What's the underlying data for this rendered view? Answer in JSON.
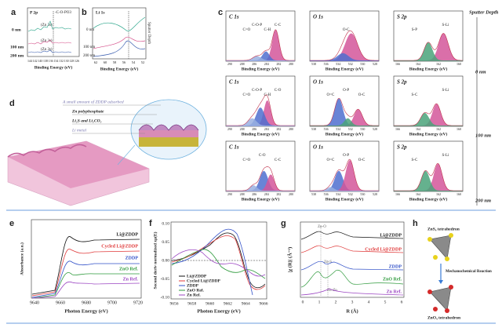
{
  "panel_a": {
    "label": "a",
    "title": "P 2p",
    "annotation": "-C-O-PO3",
    "series_labels": [
      "(Zn 3s)",
      "(Zn 3s)",
      "(Zn 3s)"
    ],
    "depths": [
      "0 nm",
      "100 nm",
      "200 nm"
    ],
    "xticks": [
      "144",
      "142",
      "140",
      "138",
      "136",
      "134",
      "132",
      "130",
      "128",
      "126"
    ],
    "xlabel": "Binding Energy (eV)"
  },
  "panel_b": {
    "label": "b",
    "title": "Li 1s",
    "side_label": "Sputter Depth",
    "depths": [
      "0 nm",
      "100 nm",
      "200 nm"
    ],
    "xticks": [
      "62",
      "60",
      "58",
      "56",
      "54",
      "52"
    ],
    "xlabel": "Binding Energy (eV)"
  },
  "panel_c": {
    "label": "c",
    "side_label": "Sputter Depth",
    "xlabel": "Binding Energy (eV)",
    "xticks": [
      [
        "290",
        "288",
        "286",
        "284",
        "282",
        "280"
      ],
      [
        "538",
        "536",
        "534",
        "532",
        "530",
        "528"
      ],
      [
        "166",
        "164",
        "162",
        "160"
      ]
    ],
    "rows": [
      {
        "depth": "0 nm",
        "cells": [
          {
            "title": "C 1s",
            "annotations": [
              "C=O",
              "C-O-P",
              "C-H",
              "C-C"
            ]
          },
          {
            "title": "O 1s",
            "annotations": [
              "O-C"
            ]
          },
          {
            "title": "S 2p",
            "annotations": [
              "S-P",
              "S-Li"
            ]
          }
        ]
      },
      {
        "depth": "100 nm",
        "cells": [
          {
            "title": "C 1s",
            "annotations": [
              "C=O",
              "C-O-P",
              "C-H",
              "C-O"
            ]
          },
          {
            "title": "O 1s",
            "annotations": [
              "O=C",
              "O-P",
              "O-C"
            ]
          },
          {
            "title": "S 2p",
            "annotations": [
              "S-C",
              "S-Li"
            ]
          }
        ]
      },
      {
        "depth": "200 nm",
        "cells": [
          {
            "title": "C 1s",
            "annotations": [
              "C=O",
              "C-O",
              "C-C"
            ]
          },
          {
            "title": "O 1s",
            "annotations": [
              "O=C",
              "O-P",
              "O-C"
            ]
          },
          {
            "title": "S 2p",
            "annotations": [
              "S-C",
              "S-Li"
            ]
          }
        ]
      }
    ]
  },
  "panel_d": {
    "label": "d",
    "layers": [
      "A small amount of ZDDP adsorbed",
      "Zn polyphosphate",
      "Li₂S and Li₂CO₃",
      "Li metal"
    ]
  },
  "panel_e": {
    "label": "e",
    "ylabel": "Absorbance (a.u.)",
    "xlabel": "Photon Energy (eV)",
    "xticks": [
      "9640",
      "9660",
      "9680",
      "9700",
      "9720"
    ],
    "legend": [
      "Li@ZDDP",
      "Cycled Li@ZDDP",
      "ZDDP",
      "ZnO Ref.",
      "Zn Ref."
    ]
  },
  "panel_f": {
    "label": "f",
    "ylabel": "Second deriv normalized xμ(E)",
    "xlabel": "Photon Energy (eV)",
    "yticks": [
      "0.10",
      "0.05",
      "0.00",
      "-0.05",
      "-0.10"
    ],
    "xticks": [
      "9656",
      "9658",
      "9660",
      "9662",
      "9664",
      "9666"
    ],
    "legend": [
      "Li@ZDDP",
      "Cycled Li@ZDDP",
      "ZDDP",
      "ZnO Ref.",
      "Zn Ref."
    ]
  },
  "panel_g": {
    "label": "g",
    "ylabel": "|χ (R)| (Å⁻³)",
    "xlabel": "R (Å)",
    "xticks": [
      "0",
      "1",
      "2",
      "3",
      "4",
      "5",
      "6"
    ],
    "annotations": [
      "Zn-O",
      "Zn-S",
      "Zn-Zn"
    ],
    "legend": [
      "Li@ZDDP",
      "Cycled Li@ZDDP",
      "ZDDP",
      "ZnO Ref.",
      "Zn Ref."
    ]
  },
  "panel_h": {
    "label": "h",
    "top": "ZnS₄ tetrahedron",
    "arrow": "Mechanochemical Reaction",
    "bottom": "ZnO₄ tetrahedron"
  }
}
